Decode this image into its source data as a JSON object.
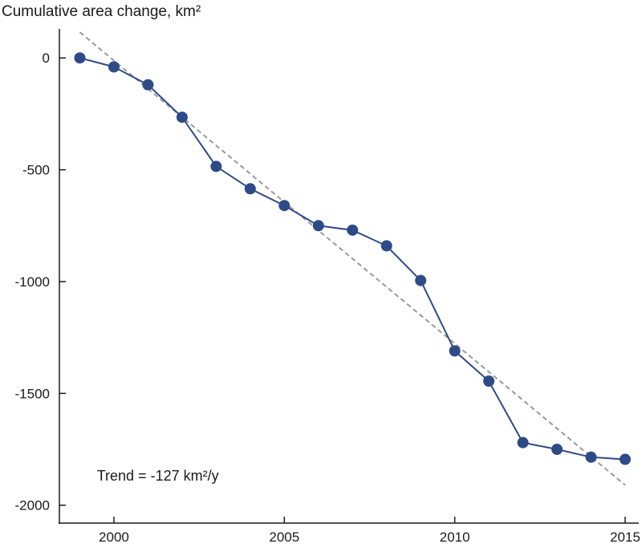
{
  "chart_data": {
    "type": "line",
    "title": "Cumulative area change, km²",
    "xlabel": "",
    "ylabel": "",
    "xlim": [
      1998.4,
      2015.4
    ],
    "ylim": [
      -2080,
      130
    ],
    "x_ticks": [
      2000,
      2005,
      2010,
      2015
    ],
    "y_ticks": [
      0,
      -500,
      -1000,
      -1500,
      -2000
    ],
    "grid": false,
    "legend": "none",
    "series": [
      {
        "x": [
          1999,
          2000,
          2001,
          2002,
          2003,
          2004,
          2005,
          2006,
          2007,
          2008,
          2009,
          2010,
          2011,
          2012,
          2013,
          2014,
          2015
        ],
        "values": [
          0,
          -40,
          -120,
          -265,
          -485,
          -585,
          -660,
          -750,
          -770,
          -840,
          -995,
          -1310,
          -1445,
          -1720,
          -1750,
          -1785,
          -1795
        ],
        "color": "#2e4a87"
      }
    ],
    "trend": {
      "x": [
        1999,
        2015
      ],
      "values": [
        115,
        -1910
      ],
      "color": "#9a9a9a",
      "style": "dashed"
    },
    "annotations": [
      {
        "text": "Trend = -127 km²/y",
        "x": 1999.5,
        "y": -1890
      }
    ]
  }
}
